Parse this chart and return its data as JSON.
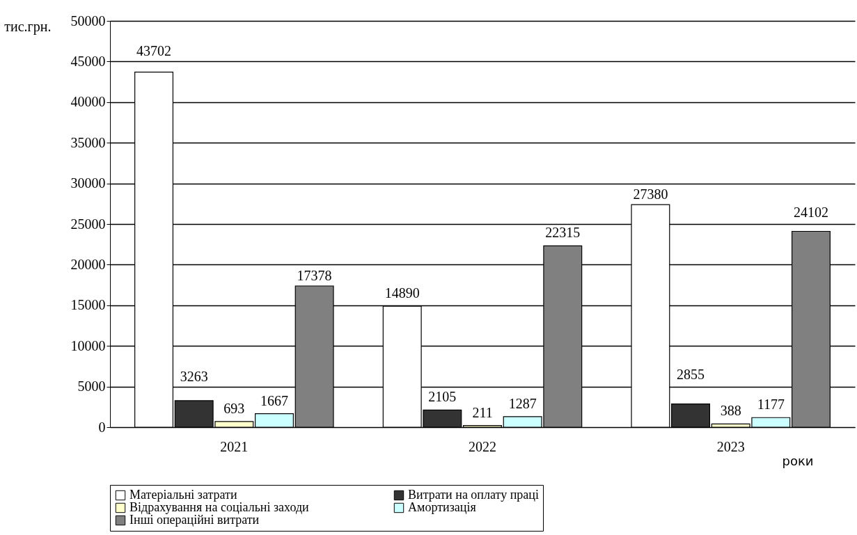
{
  "chart_data": {
    "type": "bar",
    "xlabel": "роки",
    "ylabel": "тис.грн.",
    "categories": [
      "2021",
      "2022",
      "2023"
    ],
    "series": [
      {
        "name": "Матеріальні затрати",
        "color": "#ffffff",
        "values": [
          43702,
          14890,
          27380
        ]
      },
      {
        "name": "Витрати на оплату праці",
        "color": "#333333",
        "values": [
          3263,
          2105,
          2855
        ]
      },
      {
        "name": "Відрахування на соціальні заходи",
        "color": "#ffffcc",
        "values": [
          693,
          211,
          388
        ]
      },
      {
        "name": "Амортизація",
        "color": "#ccffff",
        "values": [
          1667,
          1287,
          1177
        ]
      },
      {
        "name": "Інші операційні витрати",
        "color": "#808080",
        "values": [
          17378,
          22315,
          24102
        ]
      }
    ],
    "ylim": [
      0,
      50000
    ],
    "yticks": [
      0,
      5000,
      10000,
      15000,
      20000,
      25000,
      30000,
      35000,
      40000,
      45000,
      50000
    ],
    "grid": "y",
    "legend": "bottom",
    "data_labels": true
  }
}
